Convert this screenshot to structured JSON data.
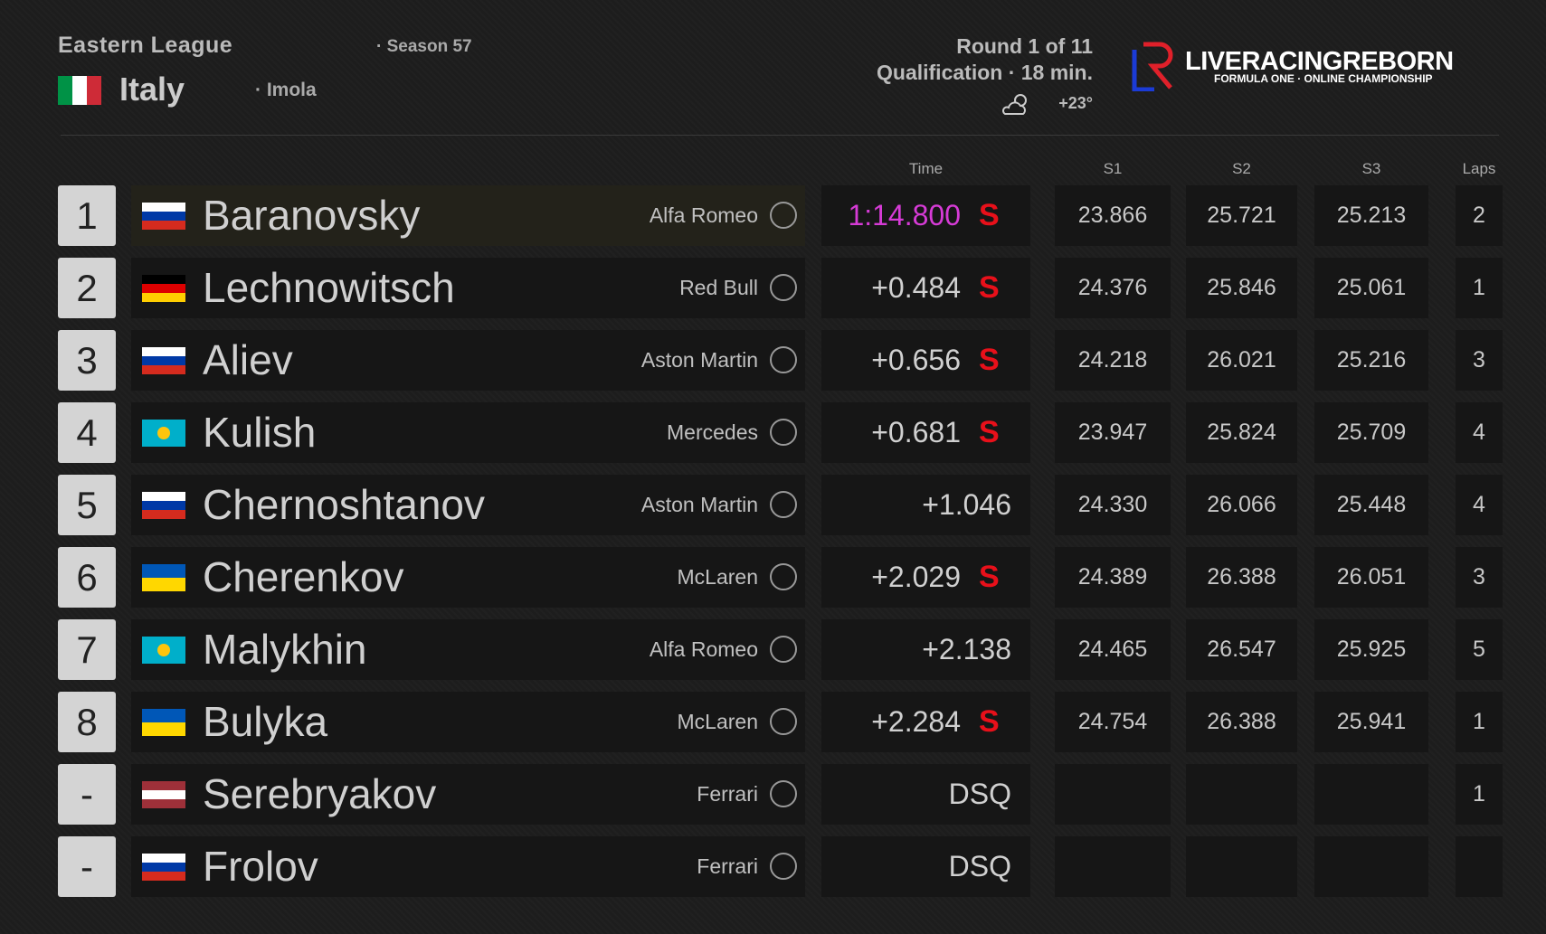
{
  "header": {
    "league": "Eastern League",
    "season": "· Season 57",
    "country": "Italy",
    "country_flag": [
      "#009246",
      "#ffffff",
      "#ce2b37"
    ],
    "track": "· Imola",
    "round": "Round 1 of 11",
    "session": "Qualification · 18 min.",
    "weather": "+23°",
    "brand": "LIVERACINGREBORN",
    "brand_sub": "FORMULA ONE · ONLINE CHAMPIONSHIP"
  },
  "columns": {
    "time": "Time",
    "s1": "S1",
    "s2": "S2",
    "s3": "S3",
    "laps": "Laps"
  },
  "rows": [
    {
      "pos": "1",
      "flag": [
        "#ffffff",
        "#0039a6",
        "#d52b1e"
      ],
      "driver": "Baranovsky",
      "team": "Alfa Romeo",
      "time": "1:14.800",
      "time_color": "#d63bd6",
      "tyre": "S",
      "s1": "23.866",
      "s2": "25.721",
      "s3": "25.213",
      "laps": "2"
    },
    {
      "pos": "2",
      "flag": [
        "#000000",
        "#dd0000",
        "#ffce00"
      ],
      "driver": "Lechnowitsch",
      "team": "Red Bull",
      "time": "+0.484",
      "tyre": "S",
      "s1": "24.376",
      "s2": "25.846",
      "s3": "25.061",
      "laps": "1"
    },
    {
      "pos": "3",
      "flag": [
        "#ffffff",
        "#0039a6",
        "#d52b1e"
      ],
      "driver": "Aliev",
      "team": "Aston Martin",
      "time": "+0.656",
      "tyre": "S",
      "s1": "24.218",
      "s2": "26.021",
      "s3": "25.216",
      "laps": "3"
    },
    {
      "pos": "4",
      "flag": [
        "#00afca"
      ],
      "driver": "Kulish",
      "team": "Mercedes",
      "time": "+0.681",
      "tyre": "S",
      "s1": "23.947",
      "s2": "25.824",
      "s3": "25.709",
      "laps": "4"
    },
    {
      "pos": "5",
      "flag": [
        "#ffffff",
        "#0039a6",
        "#d52b1e"
      ],
      "driver": "Chernoshtanov",
      "team": "Aston Martin",
      "time": "+1.046",
      "s1": "24.330",
      "s2": "26.066",
      "s3": "25.448",
      "laps": "4"
    },
    {
      "pos": "6",
      "flag": [
        "#0057b7",
        "#ffd700"
      ],
      "driver": "Cherenkov",
      "team": "McLaren",
      "time": "+2.029",
      "tyre": "S",
      "s1": "24.389",
      "s2": "26.388",
      "s3": "26.051",
      "laps": "3"
    },
    {
      "pos": "7",
      "flag": [
        "#00afca"
      ],
      "driver": "Malykhin",
      "team": "Alfa Romeo",
      "time": "+2.138",
      "s1": "24.465",
      "s2": "26.547",
      "s3": "25.925",
      "laps": "5"
    },
    {
      "pos": "8",
      "flag": [
        "#0057b7",
        "#ffd700"
      ],
      "driver": "Bulyka",
      "team": "McLaren",
      "time": "+2.284",
      "tyre": "S",
      "s1": "24.754",
      "s2": "26.388",
      "s3": "25.941",
      "laps": "1"
    },
    {
      "pos": "-",
      "flag": [
        "#9e3039",
        "#ffffff",
        "#9e3039"
      ],
      "driver": "Serebryakov",
      "team": "Ferrari",
      "time": "DSQ",
      "laps": "1"
    },
    {
      "pos": "-",
      "flag": [
        "#ffffff",
        "#0039a6",
        "#d52b1e"
      ],
      "driver": "Frolov",
      "team": "Ferrari",
      "time": "DSQ"
    }
  ]
}
